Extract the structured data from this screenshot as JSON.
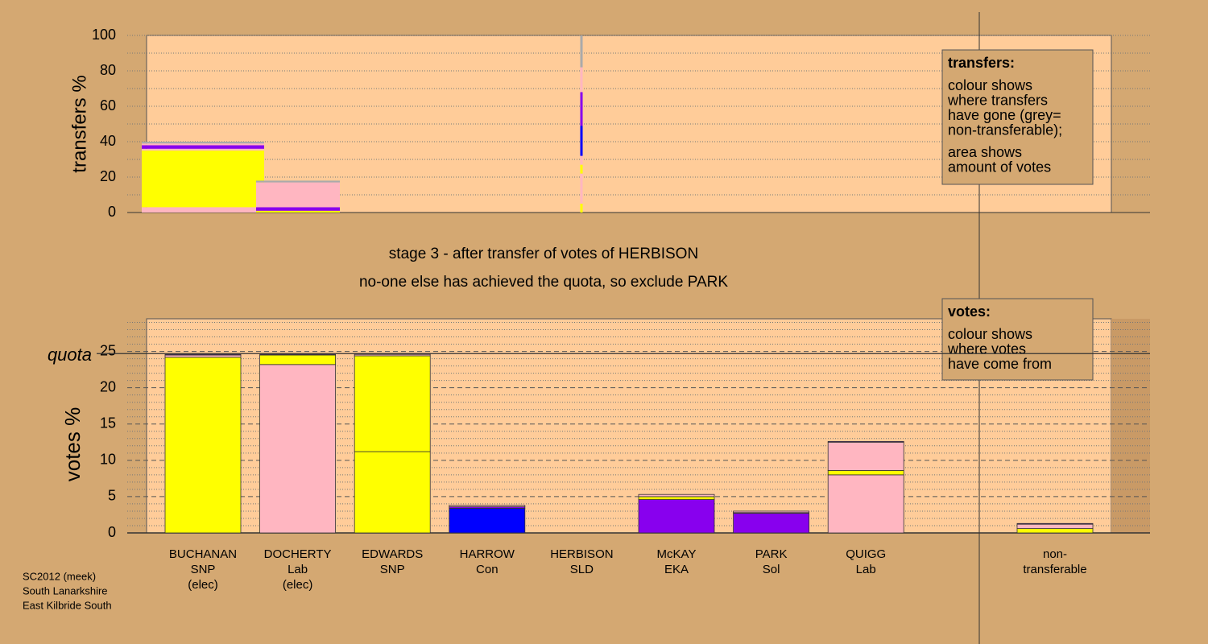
{
  "chart_data": [
    {
      "type": "stacked-blocks",
      "ylabel": "transfers %",
      "ylim": [
        0,
        100
      ],
      "yticks": [
        0,
        20,
        40,
        60,
        80,
        100
      ],
      "minor_yticks": [
        10,
        30,
        50,
        70,
        90
      ],
      "blocks": [
        {
          "segments": [
            {
              "color": "#ffb6c1",
              "value": 3
            },
            {
              "color": "#ffff00",
              "value": 32
            },
            {
              "color": "#ffb6c1",
              "value": 1
            },
            {
              "color": "#8800ee",
              "value": 2
            },
            {
              "color": "#ffb6c1",
              "value": 1
            },
            {
              "color": "#aaaaaa",
              "value": 1
            }
          ]
        },
        {
          "segments": [
            {
              "color": "#ffff00",
              "value": 1
            },
            {
              "color": "#8800ee",
              "value": 2
            },
            {
              "color": "#ffb6c1",
              "value": 14
            },
            {
              "color": "#aaaaaa",
              "value": 1
            }
          ]
        },
        {
          "segments": [
            {
              "color": "#ffff00",
              "value": 5
            },
            {
              "color": "#ffb6c1",
              "value": 17
            },
            {
              "color": "#ffff00",
              "value": 5
            },
            {
              "color": "#ffb6c1",
              "value": 5
            },
            {
              "color": "#0000ff",
              "value": 17
            },
            {
              "color": "#8800ee",
              "value": 19
            },
            {
              "color": "#ffb6c1",
              "value": 14
            },
            {
              "color": "#aaaaaa",
              "value": 18
            }
          ]
        }
      ],
      "info_title": "transfers:",
      "info_lines": [
        "colour shows",
        "where transfers",
        "have gone (grey=",
        "non-transferable);"
      ],
      "info_lines2": [
        "area shows",
        "amount of votes"
      ]
    },
    {
      "type": "stacked-bar",
      "ylabel": "votes %",
      "subtitle": [
        "stage 3 - after transfer of votes of HERBISON",
        "no-one else has achieved the quota, so exclude PARK"
      ],
      "ylim": [
        0,
        29.5
      ],
      "yticks": [
        0,
        5,
        10,
        15,
        20,
        25
      ],
      "minor_yticks": [
        1,
        2,
        3,
        4,
        6,
        7,
        8,
        9,
        11,
        12,
        13,
        14,
        16,
        17,
        18,
        19,
        21,
        22,
        23,
        24,
        26,
        27,
        28,
        29
      ],
      "quota": 24.7,
      "quota_label": "quota",
      "categories": [
        [
          "BUCHANAN",
          "SNP",
          "(elec)"
        ],
        [
          "DOCHERTY",
          "Lab",
          "(elec)"
        ],
        [
          "EDWARDS",
          "SNP"
        ],
        [
          "HARROW",
          "Con"
        ],
        [
          "HERBISON",
          "SLD"
        ],
        [
          "McKAY",
          "EKA"
        ],
        [
          "PARK",
          "Sol"
        ],
        [
          "QUIGG",
          "Lab"
        ],
        [
          "non-",
          "transferable"
        ]
      ],
      "stacks": [
        [
          {
            "color": "#ffff00",
            "value": 24.2
          },
          {
            "color": "#ffb6c1",
            "value": 0.3
          },
          {
            "color": "#8800ee",
            "value": 0.1
          }
        ],
        [
          {
            "color": "#ffb6c1",
            "value": 23.2
          },
          {
            "color": "#ffff00",
            "value": 1.3
          },
          {
            "color": "#8800ee",
            "value": 0.1
          }
        ],
        [
          {
            "color": "#ffff00",
            "value": 11.2
          },
          {
            "color": "#ffff00",
            "value": 13.2
          },
          {
            "color": "#ffb6c1",
            "value": 0.2
          },
          {
            "color": "#8800ee",
            "value": 0.1
          }
        ],
        [
          {
            "color": "#0000ff",
            "value": 3.4
          },
          {
            "color": "#8800ee",
            "value": 0.2
          },
          {
            "color": "#ffb6c1",
            "value": 0.2
          }
        ],
        [
          {
            "color": "#ffb6c1",
            "value": 0
          }
        ],
        [
          {
            "color": "#8800ee",
            "value": 4.6
          },
          {
            "color": "#ffff00",
            "value": 0.4
          },
          {
            "color": "#ffb6c1",
            "value": 0.3
          }
        ],
        [
          {
            "color": "#8800ee",
            "value": 2.7
          },
          {
            "color": "#ffff00",
            "value": 0.1
          },
          {
            "color": "#ffb6c1",
            "value": 0.2
          }
        ],
        [
          {
            "color": "#ffb6c1",
            "value": 8.0
          },
          {
            "color": "#ffff00",
            "value": 0.6
          },
          {
            "color": "#ffb6c1",
            "value": 3.9
          },
          {
            "color": "#8800ee",
            "value": 0.1
          }
        ],
        [
          {
            "color": "#ffff00",
            "value": 0.6
          },
          {
            "color": "#ffb6c1",
            "value": 0.6
          },
          {
            "color": "#8800ee",
            "value": 0.1
          }
        ]
      ],
      "info_title": "votes:",
      "info_lines": [
        "colour shows",
        "where votes",
        "have come from"
      ]
    }
  ],
  "footer": [
    "SC2012 (meek)",
    "South Lanarkshire",
    "East Kilbride South"
  ]
}
